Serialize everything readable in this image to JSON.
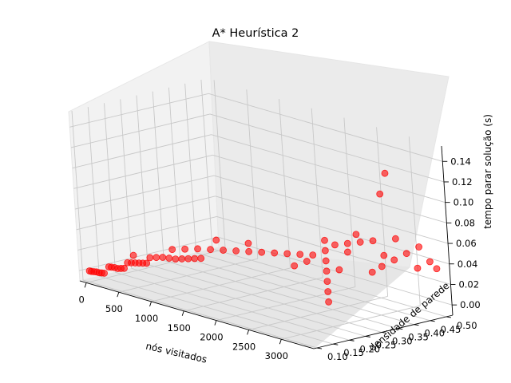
{
  "chart_data": {
    "type": "scatter",
    "projection": "3d",
    "title": "A* Heurística 2",
    "xlabel": "nós visitados",
    "ylabel": "densidade de parede",
    "zlabel": "tempo parar solução (s)",
    "xlim": [
      -100,
      3500
    ],
    "ylim": [
      0.09,
      0.52
    ],
    "zlim": [
      -0.01,
      0.155
    ],
    "xticks": [
      "0",
      "500",
      "1000",
      "1500",
      "2000",
      "2500",
      "3000"
    ],
    "yticks": [
      "0.10",
      "0.15",
      "0.20",
      "0.25",
      "0.30",
      "0.35",
      "0.40",
      "0.45",
      "0.50"
    ],
    "zticks": [
      "0.00",
      "0.02",
      "0.04",
      "0.06",
      "0.08",
      "0.10",
      "0.12",
      "0.14"
    ],
    "grid": true,
    "marker_color": "#ff0000",
    "series": [
      {
        "points": [
          [
            10,
            0.1,
            0.001
          ],
          [
            40,
            0.1,
            0.001
          ],
          [
            80,
            0.1,
            0.0015
          ],
          [
            120,
            0.1,
            0.002
          ],
          [
            160,
            0.1,
            0.002
          ],
          [
            200,
            0.1,
            0.0025
          ],
          [
            240,
            0.1,
            0.003
          ],
          [
            60,
            0.15,
            0.002
          ],
          [
            100,
            0.15,
            0.0025
          ],
          [
            150,
            0.15,
            0.003
          ],
          [
            200,
            0.15,
            0.003
          ],
          [
            250,
            0.15,
            0.004
          ],
          [
            300,
            0.15,
            0.005
          ],
          [
            100,
            0.2,
            0.003
          ],
          [
            160,
            0.2,
            0.004
          ],
          [
            220,
            0.2,
            0.005
          ],
          [
            280,
            0.2,
            0.006
          ],
          [
            340,
            0.2,
            0.007
          ],
          [
            400,
            0.2,
            0.008
          ],
          [
            200,
            0.2,
            0.012
          ],
          [
            200,
            0.25,
            0.006
          ],
          [
            300,
            0.25,
            0.008
          ],
          [
            400,
            0.25,
            0.01
          ],
          [
            500,
            0.25,
            0.011
          ],
          [
            600,
            0.25,
            0.012
          ],
          [
            700,
            0.25,
            0.014
          ],
          [
            800,
            0.25,
            0.016
          ],
          [
            900,
            0.25,
            0.018
          ],
          [
            1000,
            0.25,
            0.02
          ],
          [
            300,
            0.3,
            0.012
          ],
          [
            500,
            0.3,
            0.016
          ],
          [
            700,
            0.3,
            0.02
          ],
          [
            900,
            0.3,
            0.023
          ],
          [
            1100,
            0.3,
            0.026
          ],
          [
            1300,
            0.3,
            0.029
          ],
          [
            1500,
            0.3,
            0.032
          ],
          [
            1700,
            0.3,
            0.035
          ],
          [
            1900,
            0.3,
            0.038
          ],
          [
            2100,
            0.3,
            0.041
          ],
          [
            2300,
            0.3,
            0.044
          ],
          [
            2500,
            0.3,
            0.047
          ],
          [
            1000,
            0.3,
            0.034
          ],
          [
            1500,
            0.3,
            0.04
          ],
          [
            2200,
            0.3,
            0.031
          ],
          [
            2400,
            0.3,
            0.039
          ],
          [
            2700,
            0.3,
            0.005
          ],
          [
            2700,
            0.3,
            0.015
          ],
          [
            2700,
            0.3,
            0.025
          ],
          [
            2700,
            0.3,
            0.035
          ],
          [
            2700,
            0.3,
            0.045
          ],
          [
            2700,
            0.3,
            0.055
          ],
          [
            2700,
            0.3,
            0.065
          ],
          [
            2900,
            0.3,
            0.04
          ],
          [
            3050,
            0.3,
            0.06
          ],
          [
            3200,
            0.3,
            0.08
          ],
          [
            2600,
            0.35,
            0.055
          ],
          [
            2800,
            0.35,
            0.06
          ],
          [
            3000,
            0.35,
            0.065
          ],
          [
            3200,
            0.35,
            0.07
          ],
          [
            2900,
            0.4,
            0.03
          ],
          [
            3100,
            0.4,
            0.05
          ],
          [
            3300,
            0.4,
            0.07
          ],
          [
            3100,
            0.4,
            0.11
          ],
          [
            3200,
            0.4,
            0.132
          ],
          [
            2800,
            0.45,
            0.03
          ],
          [
            3000,
            0.45,
            0.04
          ],
          [
            3200,
            0.45,
            0.05
          ],
          [
            3400,
            0.45,
            0.06
          ],
          [
            3300,
            0.5,
            0.04
          ],
          [
            3100,
            0.5,
            0.03
          ],
          [
            3400,
            0.5,
            0.035
          ]
        ]
      }
    ]
  }
}
